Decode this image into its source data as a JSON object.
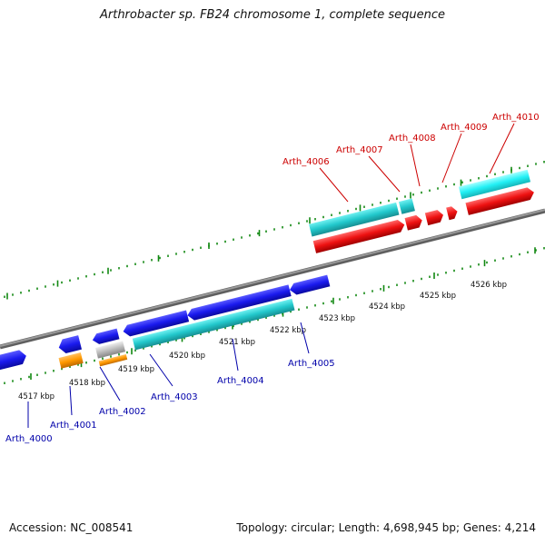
{
  "title": "Arthrobacter sp. FB24 chromosome 1, complete sequence",
  "footer": {
    "accession": "Accession: NC_008541",
    "info": "Topology: circular; Length: 4,698,945 bp; Genes: 4,214"
  },
  "scale_labels": [
    "4517 kbp",
    "4518 kbp",
    "4519 kbp",
    "4520 kbp",
    "4521 kbp",
    "4522 kbp",
    "4523 kbp",
    "4524 kbp",
    "4525 kbp",
    "4526 kbp"
  ],
  "gene_labels": {
    "reverse": [
      "Arth_4000",
      "Arth_4001",
      "Arth_4002",
      "Arth_4003",
      "Arth_4004",
      "Arth_4005"
    ],
    "forward": [
      "Arth_4006",
      "Arth_4007",
      "Arth_4008",
      "Arth_4009",
      "Arth_4010"
    ]
  },
  "colors": {
    "blue_gene": "#1a1aee",
    "cyan_gene": "#22c8cc",
    "red_gene": "#ee1111",
    "orange_gene": "#ff9900",
    "gray_gene": "#bbbbbb",
    "backbone": "#7f7f7f",
    "ticks": "#118811",
    "label_blue": "#0000aa",
    "label_red": "#cc0000"
  }
}
